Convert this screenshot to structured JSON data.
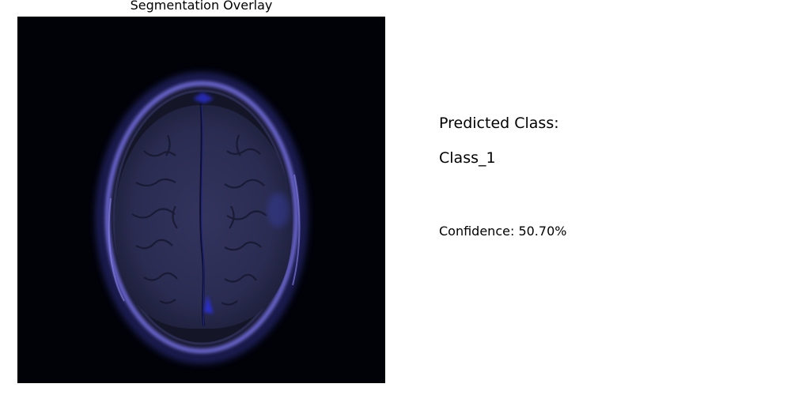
{
  "figure": {
    "title": "Segmentation Overlay",
    "image_description_icon": "brain-mri-axial-slice-image"
  },
  "prediction": {
    "label": "Predicted Class:",
    "value": "Class_1",
    "confidence_text": "Confidence: 50.70%"
  },
  "colors": {
    "background": "#ffffff",
    "image_background": "#000208",
    "overlay_tint": "#4a48c8",
    "skull_ring": "#6e6ad8",
    "brain_tissue": "#2c2d55"
  }
}
